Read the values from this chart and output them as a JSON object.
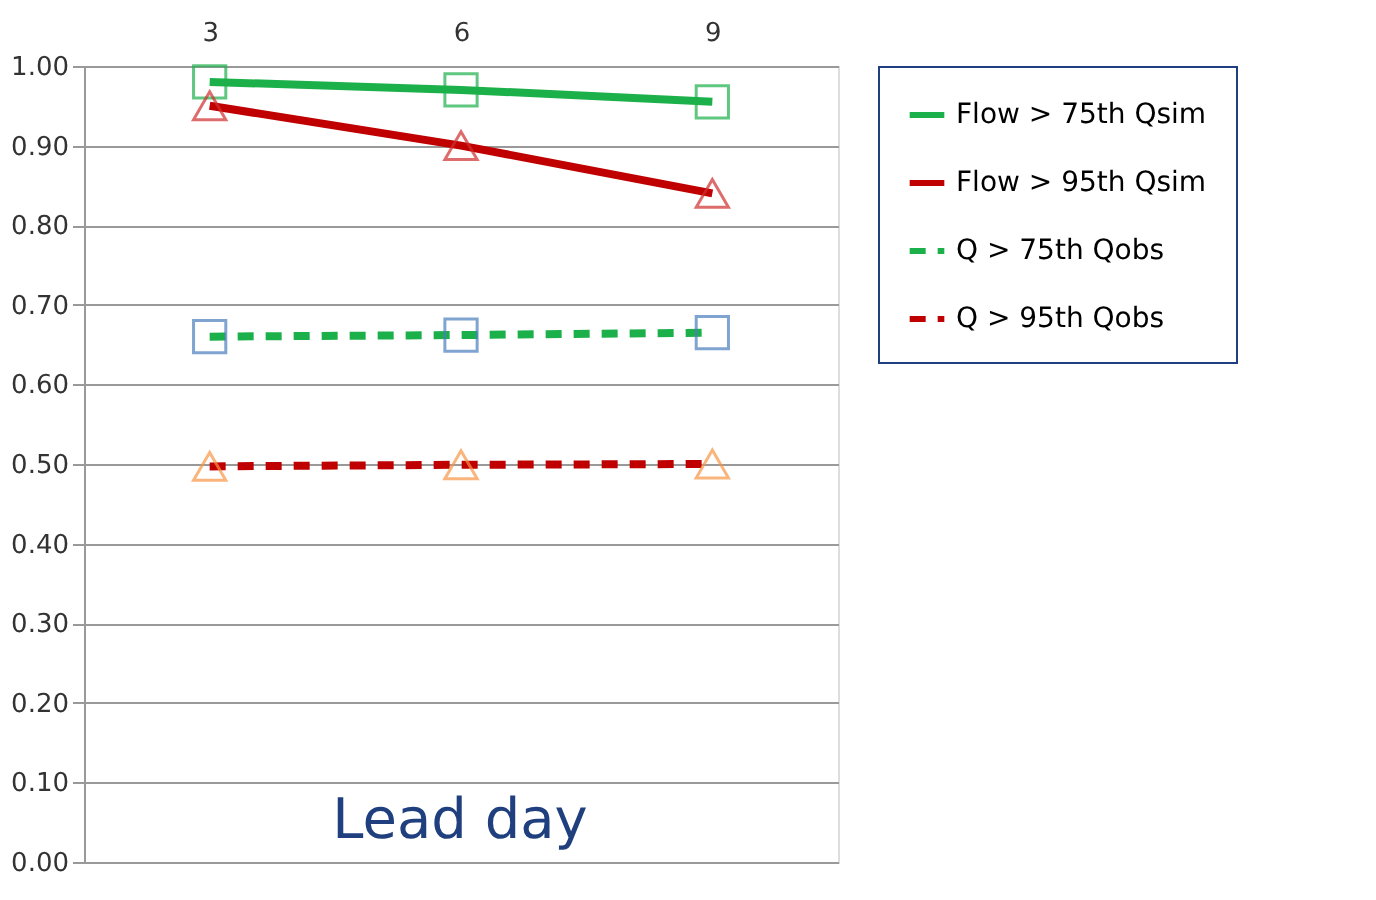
{
  "chart_data": {
    "type": "line",
    "xlabel": "Lead day",
    "categories": [
      "3",
      "6",
      "9"
    ],
    "ylim": [
      0,
      1
    ],
    "yticks": [
      {
        "value": 0,
        "label": "0.00"
      },
      {
        "value": 0.1,
        "label": "0.10"
      },
      {
        "value": 0.2,
        "label": "0.20"
      },
      {
        "value": 0.3,
        "label": "0.30"
      },
      {
        "value": 0.4,
        "label": "0.40"
      },
      {
        "value": 0.5,
        "label": "0.50"
      },
      {
        "value": 0.6,
        "label": "0.60"
      },
      {
        "value": 0.7,
        "label": "0.70"
      },
      {
        "value": 0.8,
        "label": "0.80"
      },
      {
        "value": 0.9,
        "label": "0.90"
      },
      {
        "value": 1,
        "label": "1.00"
      }
    ],
    "grid": "y",
    "legend": "right",
    "series": [
      {
        "name": "Flow > 75th Qsim",
        "color": "#1cb04a",
        "colors": [
          "#1cb04a",
          "#1cb04a",
          "#1cb04a"
        ],
        "marker": "square",
        "line_style": "solid",
        "values": [
          0.98,
          0.97,
          0.955
        ]
      },
      {
        "name": "Flow > 95th Qsim",
        "color": "#c00000",
        "colors": [
          "#d03030",
          "#d03030",
          "#d03030"
        ],
        "marker": "triangle",
        "line_style": "solid",
        "values": [
          0.95,
          0.9,
          0.84
        ]
      },
      {
        "name": "Q > 75th Qobs",
        "color": "#1cb04a",
        "colors": [
          "#4a7ebb",
          "#4a7ebb",
          "#4a7ebb"
        ],
        "marker": "square",
        "line_style": "dashed",
        "values": [
          0.66,
          0.662,
          0.665
        ]
      },
      {
        "name": "Q > 95th Qobs",
        "color": "#c00000",
        "colors": [
          "#f79646",
          "#f79646",
          "#f79646"
        ],
        "marker": "triangle",
        "line_style": "dashed",
        "values": [
          0.497,
          0.499,
          0.5
        ]
      }
    ]
  }
}
